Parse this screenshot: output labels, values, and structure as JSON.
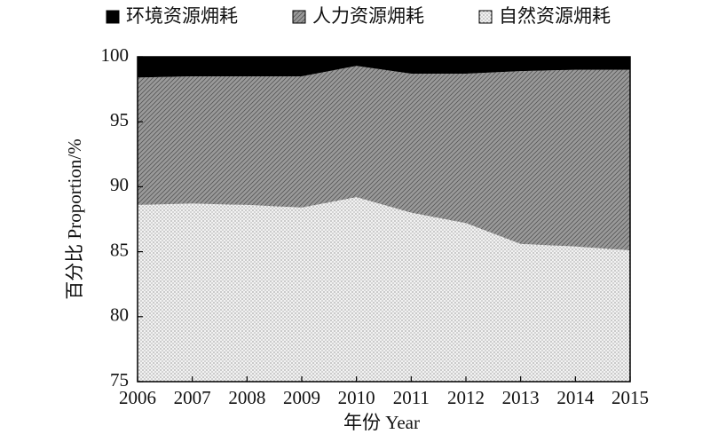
{
  "chart_data": {
    "type": "stacked_area",
    "x": [
      2006,
      2007,
      2008,
      2009,
      2010,
      2011,
      2012,
      2013,
      2014,
      2015
    ],
    "series": [
      {
        "name": "环境资源㶲耗",
        "color": "#000000",
        "values": [
          1.6,
          1.5,
          1.5,
          1.5,
          0.7,
          1.3,
          1.3,
          1.1,
          1.0,
          1.0
        ]
      },
      {
        "name": "人力资源㶲耗",
        "color": "#9a9a9a",
        "values": [
          9.8,
          9.8,
          9.9,
          10.1,
          10.1,
          10.7,
          11.5,
          13.3,
          13.6,
          13.9
        ]
      },
      {
        "name": "自然资源㶲耗",
        "color": "#cfcfcf",
        "values": [
          88.6,
          88.7,
          88.6,
          88.4,
          89.2,
          88.0,
          87.2,
          85.6,
          85.4,
          85.1
        ]
      }
    ],
    "xlim": [
      2006,
      2015
    ],
    "xticks": [
      2006,
      2007,
      2008,
      2009,
      2010,
      2011,
      2012,
      2013,
      2014,
      2015
    ],
    "ylim": [
      75,
      100
    ],
    "yticks": [
      75,
      80,
      85,
      90,
      95,
      100
    ],
    "xlabel": "年份 Year",
    "ylabel": "百分比 Proportion/%",
    "legend": "top"
  }
}
